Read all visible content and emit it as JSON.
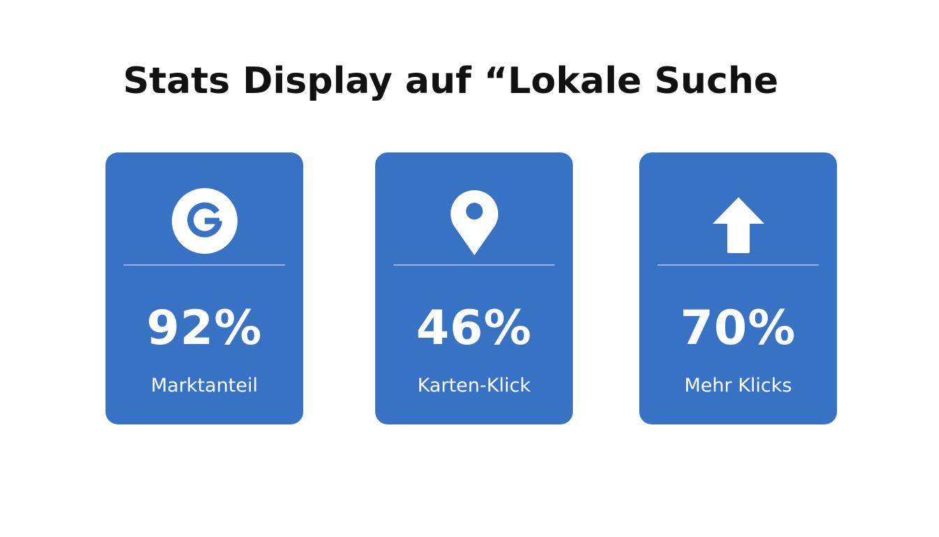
{
  "title": "Stats Display auf “Lokale Suche",
  "colors": {
    "card_background": "#3772c4",
    "text_on_card": "#ffffff",
    "title_text": "#111111"
  },
  "cards": [
    {
      "icon": "google-g-icon",
      "value": "92%",
      "label": "Marktanteil"
    },
    {
      "icon": "map-pin-icon",
      "value": "46%",
      "label": "Karten-Klick"
    },
    {
      "icon": "arrow-up-icon",
      "value": "70%",
      "label": "Mehr Klicks"
    }
  ]
}
